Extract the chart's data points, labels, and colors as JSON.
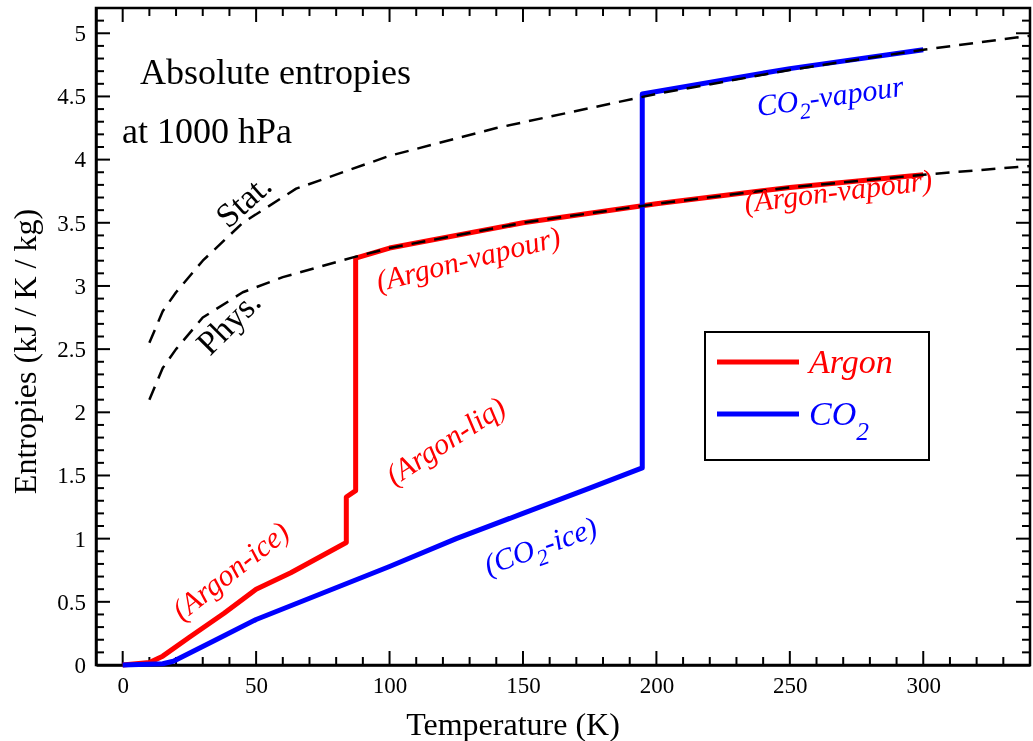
{
  "chart_data": {
    "type": "line",
    "xlabel": "Temperature (K)",
    "ylabel": "Entropies (kJ / K / kg)",
    "xlim": [
      -10,
      340
    ],
    "ylim": [
      0,
      5.2
    ],
    "xticks": [
      0,
      {
        "value": 10,
        "label": null
      },
      {
        "value": 20,
        "label": null
      },
      {
        "value": 30,
        "label": null
      },
      {
        "value": 40,
        "label": null
      },
      50,
      {
        "value": 60,
        "label": null
      },
      {
        "value": 70,
        "label": null
      },
      {
        "value": 80,
        "label": null
      },
      {
        "value": 90,
        "label": null
      },
      100,
      {
        "value": 110,
        "label": null
      },
      {
        "value": 120,
        "label": null
      },
      {
        "value": 130,
        "label": null
      },
      {
        "value": 140,
        "label": null
      },
      150,
      {
        "value": 160,
        "label": null
      },
      {
        "value": 170,
        "label": null
      },
      {
        "value": 180,
        "label": null
      },
      {
        "value": 190,
        "label": null
      },
      200,
      {
        "value": 210,
        "label": null
      },
      {
        "value": 220,
        "label": null
      },
      {
        "value": 230,
        "label": null
      },
      {
        "value": 240,
        "label": null
      },
      250,
      {
        "value": 260,
        "label": null
      },
      {
        "value": 270,
        "label": null
      },
      {
        "value": 280,
        "label": null
      },
      {
        "value": 290,
        "label": null
      },
      300,
      {
        "value": 310,
        "label": null
      },
      {
        "value": 320,
        "label": null
      },
      {
        "value": 330,
        "label": null
      }
    ],
    "yticks": [
      0,
      {
        "value": 0.1,
        "label": null
      },
      {
        "value": 0.2,
        "label": null
      },
      {
        "value": 0.3,
        "label": null
      },
      {
        "value": 0.4,
        "label": null
      },
      0.5,
      {
        "value": 0.6,
        "label": null
      },
      {
        "value": 0.7,
        "label": null
      },
      {
        "value": 0.8,
        "label": null
      },
      {
        "value": 0.9,
        "label": null
      },
      1,
      {
        "value": 1.1,
        "label": null
      },
      {
        "value": 1.2,
        "label": null
      },
      {
        "value": 1.3,
        "label": null
      },
      {
        "value": 1.4,
        "label": null
      },
      1.5,
      {
        "value": 1.6,
        "label": null
      },
      {
        "value": 1.7,
        "label": null
      },
      {
        "value": 1.8,
        "label": null
      },
      {
        "value": 1.9,
        "label": null
      },
      2,
      {
        "value": 2.1,
        "label": null
      },
      {
        "value": 2.2,
        "label": null
      },
      {
        "value": 2.3,
        "label": null
      },
      {
        "value": 2.4,
        "label": null
      },
      2.5,
      {
        "value": 2.6,
        "label": null
      },
      {
        "value": 2.7,
        "label": null
      },
      {
        "value": 2.8,
        "label": null
      },
      {
        "value": 2.9,
        "label": null
      },
      3,
      {
        "value": 3.1,
        "label": null
      },
      {
        "value": 3.2,
        "label": null
      },
      {
        "value": 3.3,
        "label": null
      },
      {
        "value": 3.4,
        "label": null
      },
      3.5,
      {
        "value": 3.6,
        "label": null
      },
      {
        "value": 3.7,
        "label": null
      },
      {
        "value": 3.8,
        "label": null
      },
      {
        "value": 3.9,
        "label": null
      },
      4,
      {
        "value": 4.1,
        "label": null
      },
      {
        "value": 4.2,
        "label": null
      },
      {
        "value": 4.3,
        "label": null
      },
      {
        "value": 4.4,
        "label": null
      },
      4.5,
      {
        "value": 4.6,
        "label": null
      },
      {
        "value": 4.7,
        "label": null
      },
      {
        "value": 4.8,
        "label": null
      },
      {
        "value": 4.9,
        "label": null
      },
      5,
      {
        "value": 5.1,
        "label": null
      }
    ],
    "grid": false,
    "legend": "right",
    "marker": "none",
    "series": [
      {
        "color": "#000000",
        "line_style": "dashed",
        "x": [
          10,
          15,
          20,
          30,
          45,
          65,
          100,
          140,
          200,
          250,
          300,
          340
        ],
        "values": [
          2.55,
          2.8,
          2.95,
          3.2,
          3.5,
          3.77,
          4.03,
          4.25,
          4.52,
          4.71,
          4.87,
          4.98
        ]
      },
      {
        "color": "#000000",
        "line_style": "dashed",
        "x": [
          10,
          15,
          20,
          30,
          45,
          60,
          87,
          100,
          150,
          200,
          250,
          300,
          340
        ],
        "values": [
          2.1,
          2.35,
          2.5,
          2.75,
          2.95,
          3.07,
          3.23,
          3.3,
          3.5,
          3.65,
          3.78,
          3.88,
          3.95
        ]
      },
      {
        "name": "Argon",
        "color": "#ff0000",
        "line_style": "solid",
        "x": [
          0,
          10,
          15,
          25,
          38,
          50,
          63,
          83.8,
          83.8,
          87.3,
          87.3,
          100,
          150,
          200,
          250,
          300
        ],
        "values": [
          0,
          0.02,
          0.07,
          0.22,
          0.41,
          0.6,
          0.73,
          0.97,
          1.33,
          1.38,
          3.22,
          3.3,
          3.5,
          3.65,
          3.78,
          3.88
        ]
      },
      {
        "name": "CO$_{2}$",
        "color": "#0000ff",
        "line_style": "solid",
        "x": [
          0,
          15,
          19,
          35,
          50,
          75,
          100,
          125,
          150,
          175,
          194.7,
          194.7,
          250,
          300
        ],
        "values": [
          0,
          0.01,
          0.03,
          0.2,
          0.36,
          0.57,
          0.78,
          1.0,
          1.2,
          1.4,
          1.56,
          4.52,
          4.72,
          4.87
        ]
      }
    ],
    "annotations": [
      "Absolute entropies",
      "at 1000 hPa",
      "Stat.",
      "Phys.",
      "(Argon-vapour)",
      "(Argon-vapour)",
      "CO$_{2}$-vapour",
      "(Argon-liq)",
      "(Argon-ice)",
      "(CO$_{2}$-ice)"
    ]
  }
}
